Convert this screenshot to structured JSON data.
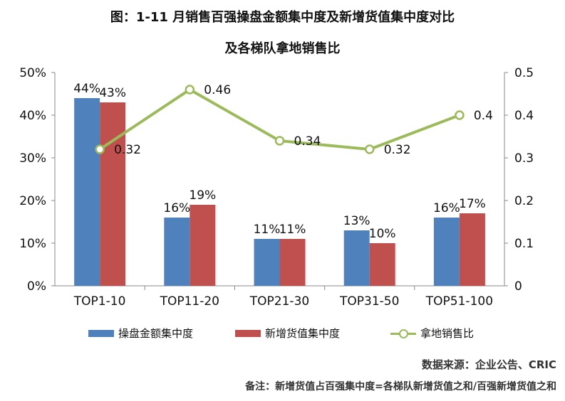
{
  "chart_data": {
    "type": "bar",
    "title": "图：1-11 月销售百强操盘金额集中度及新增货值集中度对比",
    "subtitle": "及各梯队拿地销售比",
    "categories": [
      "TOP1-10",
      "TOP11-20",
      "TOP21-30",
      "TOP31-50",
      "TOP51-100"
    ],
    "series": [
      {
        "name": "操盘金额集中度",
        "axis": "left",
        "color": "#4f81bd",
        "values": [
          44,
          16,
          11,
          13,
          16
        ],
        "labels": [
          "44%",
          "16%",
          "11%",
          "13%",
          "16%"
        ]
      },
      {
        "name": "新增货值集中度",
        "axis": "left",
        "color": "#c0504d",
        "values": [
          43,
          19,
          11,
          10,
          17
        ],
        "labels": [
          "43%",
          "19%",
          "11%",
          "10%",
          "17%"
        ]
      },
      {
        "name": "拿地销售比",
        "axis": "right",
        "type": "line",
        "color": "#9bbb59",
        "values": [
          0.32,
          0.46,
          0.34,
          0.32,
          0.4
        ],
        "labels": [
          "0.32",
          "0.46",
          "0.34",
          "0.32",
          "0.4"
        ]
      }
    ],
    "y_left": {
      "min": 0,
      "max": 50,
      "ticks": [
        "0%",
        "10%",
        "20%",
        "30%",
        "40%",
        "50%"
      ]
    },
    "y_right": {
      "min": 0,
      "max": 0.5,
      "ticks": [
        "0",
        "0.1",
        "0.2",
        "0.3",
        "0.4",
        "0.5"
      ]
    },
    "legend_position": "bottom",
    "grid": false
  },
  "source": "数据来源：企业公告、CRIC",
  "note": "备注：新增货值占百强集中度=各梯队新增货值之和/百强新增货值之和"
}
